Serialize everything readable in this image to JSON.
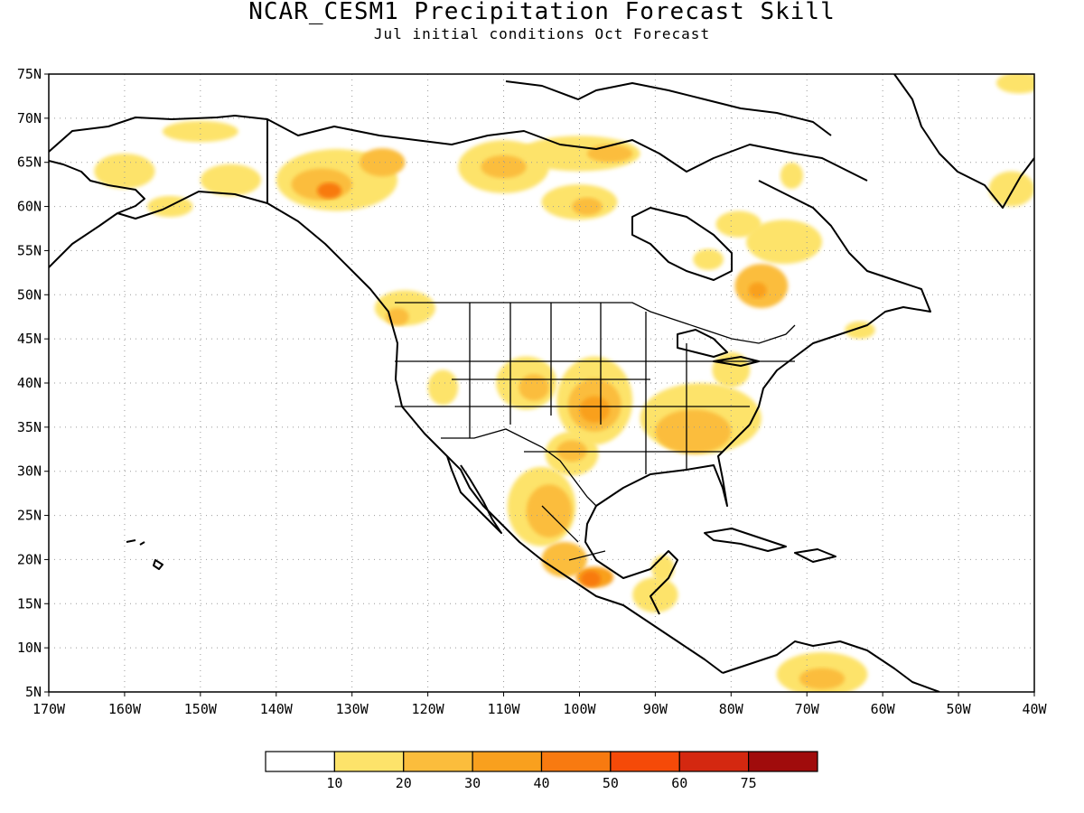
{
  "title": "NCAR_CESM1 Precipitation Forecast Skill",
  "subtitle": "Jul initial conditions  Oct Forecast",
  "map": {
    "lon_range": [
      -170,
      -40
    ],
    "lat_range": [
      5,
      75
    ],
    "grid": "dotted",
    "lat_labels": [
      "5N",
      "10N",
      "15N",
      "20N",
      "25N",
      "30N",
      "35N",
      "40N",
      "45N",
      "50N",
      "55N",
      "60N",
      "65N",
      "70N",
      "75N"
    ],
    "lon_labels": [
      "170W",
      "160W",
      "150W",
      "140W",
      "130W",
      "120W",
      "110W",
      "100W",
      "90W",
      "80W",
      "70W",
      "60W",
      "50W",
      "40W"
    ]
  },
  "legend": {
    "labels": [
      "10",
      "20",
      "30",
      "40",
      "50",
      "60",
      "75"
    ],
    "colors": [
      "#ffffff",
      "#fde36a",
      "#fbbd3c",
      "#f9a01e",
      "#f87a10",
      "#f54a08",
      "#d42810",
      "#a00c0c"
    ]
  },
  "skill_regions": [
    {
      "name": "alaska-north",
      "lon": -150,
      "lat": 68.5,
      "rx": 5,
      "ry": 1.2,
      "level": 1
    },
    {
      "name": "alaska-west",
      "lon": -160,
      "lat": 64,
      "rx": 4,
      "ry": 2,
      "level": 1
    },
    {
      "name": "alaska-central",
      "lon": -146,
      "lat": 63,
      "rx": 4,
      "ry": 1.8,
      "level": 1
    },
    {
      "name": "alaska-southwest",
      "lon": -154,
      "lat": 60,
      "rx": 3,
      "ry": 1.2,
      "level": 1
    },
    {
      "name": "yukon",
      "lon": -132,
      "lat": 63,
      "rx": 8,
      "ry": 3.5,
      "level": 1
    },
    {
      "name": "yukon-core",
      "lon": -134,
      "lat": 62.5,
      "rx": 4,
      "ry": 1.8,
      "level": 2
    },
    {
      "name": "yukon-peak",
      "lon": -133,
      "lat": 61.8,
      "rx": 1.6,
      "ry": 0.9,
      "level": 4
    },
    {
      "name": "mackenzie",
      "lon": -126,
      "lat": 65,
      "rx": 3,
      "ry": 1.6,
      "level": 2
    },
    {
      "name": "nwt-central",
      "lon": -110,
      "lat": 64.5,
      "rx": 6,
      "ry": 3,
      "level": 1
    },
    {
      "name": "nwt-core",
      "lon": -110,
      "lat": 64.5,
      "rx": 3,
      "ry": 1.3,
      "level": 2
    },
    {
      "name": "nunavut",
      "lon": -100,
      "lat": 66,
      "rx": 8,
      "ry": 2,
      "level": 1
    },
    {
      "name": "nunavut-core",
      "lon": -96,
      "lat": 66,
      "rx": 3,
      "ry": 1,
      "level": 2
    },
    {
      "name": "keewatin",
      "lon": -100,
      "lat": 60.5,
      "rx": 5,
      "ry": 2,
      "level": 1
    },
    {
      "name": "keewatin-core",
      "lon": -99,
      "lat": 60,
      "rx": 2,
      "ry": 1,
      "level": 2
    },
    {
      "name": "labrador",
      "lon": -79,
      "lat": 58,
      "rx": 3,
      "ry": 1.5,
      "level": 1
    },
    {
      "name": "labrador-east",
      "lon": -73,
      "lat": 56,
      "rx": 5,
      "ry": 2.5,
      "level": 1
    },
    {
      "name": "quebec",
      "lon": -76,
      "lat": 51,
      "rx": 3.5,
      "ry": 2.5,
      "level": 2
    },
    {
      "name": "quebec-core",
      "lon": -76.5,
      "lat": 50.5,
      "rx": 1.2,
      "ry": 0.9,
      "level": 3
    },
    {
      "name": "hudson-east",
      "lon": -83,
      "lat": 54,
      "rx": 2,
      "ry": 1.2,
      "level": 1
    },
    {
      "name": "baffin",
      "lon": -72,
      "lat": 63.5,
      "rx": 1.5,
      "ry": 1.5,
      "level": 1
    },
    {
      "name": "greenland-se",
      "lon": -43,
      "lat": 62,
      "rx": 3,
      "ry": 2,
      "level": 1
    },
    {
      "name": "greenland-ne",
      "lon": -42,
      "lat": 74,
      "rx": 3,
      "ry": 1.2,
      "level": 1
    },
    {
      "name": "bc-coast",
      "lon": -123,
      "lat": 48.5,
      "rx": 4,
      "ry": 2,
      "level": 1
    },
    {
      "name": "bc-core",
      "lon": -124,
      "lat": 47.5,
      "rx": 1.5,
      "ry": 1,
      "level": 2
    },
    {
      "name": "nevada",
      "lon": -118,
      "lat": 39.5,
      "rx": 2,
      "ry": 2,
      "level": 1
    },
    {
      "name": "colorado",
      "lon": -107,
      "lat": 40,
      "rx": 4,
      "ry": 3,
      "level": 1
    },
    {
      "name": "colorado-core",
      "lon": -106,
      "lat": 39.5,
      "rx": 2,
      "ry": 1.5,
      "level": 2
    },
    {
      "name": "plains",
      "lon": -98,
      "lat": 38,
      "rx": 5,
      "ry": 5,
      "level": 1
    },
    {
      "name": "plains-core",
      "lon": -98,
      "lat": 37.5,
      "rx": 3.5,
      "ry": 3,
      "level": 2
    },
    {
      "name": "plains-center",
      "lon": -98,
      "lat": 37,
      "rx": 2,
      "ry": 1.5,
      "level": 3
    },
    {
      "name": "texas",
      "lon": -101,
      "lat": 32,
      "rx": 3.5,
      "ry": 2.5,
      "level": 1
    },
    {
      "name": "texas-core",
      "lon": -101,
      "lat": 32.3,
      "rx": 2,
      "ry": 1.2,
      "level": 2
    },
    {
      "name": "southeast",
      "lon": -84,
      "lat": 36,
      "rx": 8,
      "ry": 4,
      "level": 1
    },
    {
      "name": "southeast-core",
      "lon": -85,
      "lat": 34.5,
      "rx": 5,
      "ry": 2.5,
      "level": 2
    },
    {
      "name": "mid-atlantic",
      "lon": -80,
      "lat": 41.5,
      "rx": 2.5,
      "ry": 2,
      "level": 1
    },
    {
      "name": "nova-scotia",
      "lon": -63,
      "lat": 46,
      "rx": 2,
      "ry": 1,
      "level": 1
    },
    {
      "name": "mexico-north",
      "lon": -105,
      "lat": 26,
      "rx": 4.5,
      "ry": 4.5,
      "level": 1
    },
    {
      "name": "mexico-core",
      "lon": -104,
      "lat": 25.5,
      "rx": 3,
      "ry": 3,
      "level": 2
    },
    {
      "name": "mexico-center",
      "lon": -102,
      "lat": 20,
      "rx": 3,
      "ry": 2,
      "level": 2
    },
    {
      "name": "mexico-south",
      "lon": -98,
      "lat": 18,
      "rx": 2.5,
      "ry": 1.2,
      "level": 3
    },
    {
      "name": "mexico-south-peak",
      "lon": -98.5,
      "lat": 17.8,
      "rx": 1.3,
      "ry": 0.9,
      "level": 4
    },
    {
      "name": "central-america",
      "lon": -90,
      "lat": 16,
      "rx": 3,
      "ry": 2,
      "level": 1
    },
    {
      "name": "yucatan",
      "lon": -89,
      "lat": 19,
      "rx": 1.5,
      "ry": 1.5,
      "level": 1
    },
    {
      "name": "venezuela",
      "lon": -68,
      "lat": 7,
      "rx": 6,
      "ry": 2.5,
      "level": 1
    },
    {
      "name": "venezuela-core",
      "lon": -68,
      "lat": 6.5,
      "rx": 3,
      "ry": 1.2,
      "level": 2
    }
  ]
}
